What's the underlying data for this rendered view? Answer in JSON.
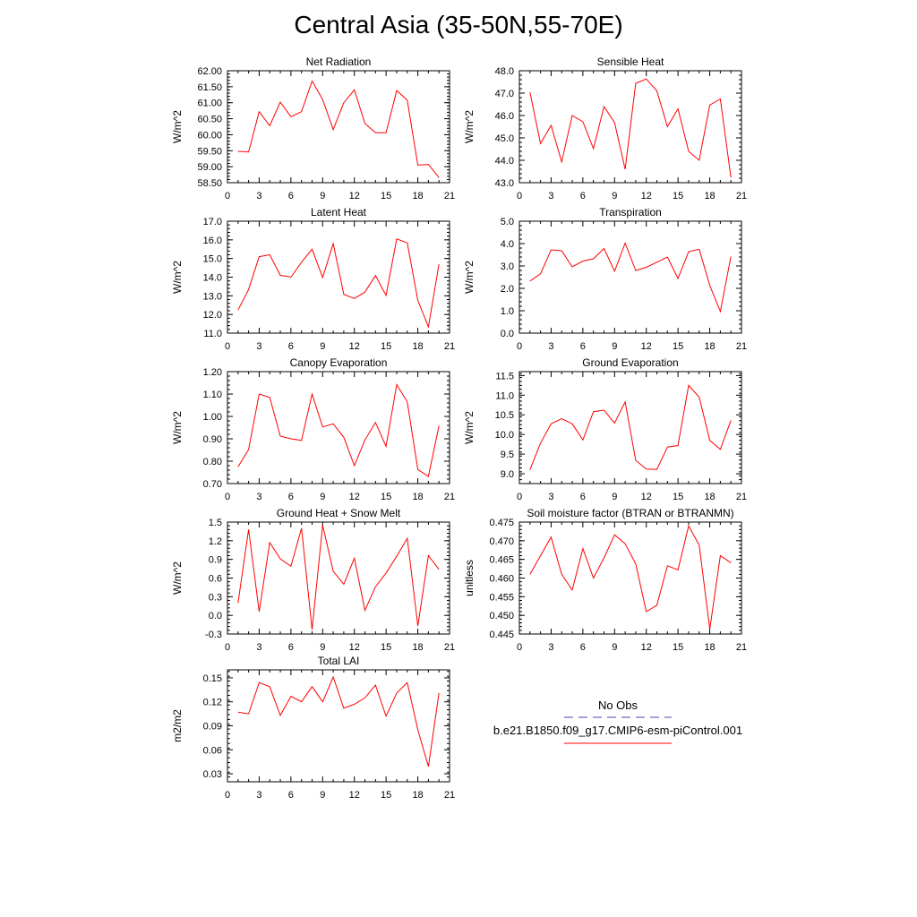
{
  "page": {
    "title": "Central Asia (35-50N,55-70E)"
  },
  "legend": {
    "obs_label": "No Obs",
    "model_label": "b.e21.B1850.f09_g17.CMIP6-esm-piControl.001",
    "obs_color": "#4444aa",
    "model_color": "#ff0000"
  },
  "chart_data": [
    {
      "type": "line",
      "title": "Net Radiation",
      "ylabel": "W/m^2",
      "xlim": [
        0,
        21
      ],
      "ylim": [
        58.5,
        62.0
      ],
      "xticks": [
        "0",
        "3",
        "6",
        "9",
        "12",
        "15",
        "18",
        "21"
      ],
      "yticks": [
        "58.50",
        "59.00",
        "59.50",
        "60.00",
        "60.50",
        "61.00",
        "61.50",
        "62.00"
      ],
      "x": [
        1,
        2,
        3,
        4,
        5,
        6,
        7,
        8,
        9,
        10,
        11,
        12,
        13,
        14,
        15,
        16,
        17,
        18,
        19,
        20
      ],
      "series": [
        {
          "values": [
            59.48,
            59.46,
            60.72,
            60.28,
            61.02,
            60.56,
            60.72,
            61.68,
            61.1,
            60.16,
            61.0,
            61.4,
            60.35,
            60.06,
            60.06,
            61.38,
            61.08,
            59.05,
            59.07,
            58.66
          ],
          "color": "#ff0000"
        }
      ]
    },
    {
      "type": "line",
      "title": "Sensible Heat",
      "ylabel": "W/m^2",
      "xlim": [
        0,
        21
      ],
      "ylim": [
        43.0,
        48.0
      ],
      "xticks": [
        "0",
        "3",
        "6",
        "9",
        "12",
        "15",
        "18",
        "21"
      ],
      "yticks": [
        "43.0",
        "44.0",
        "45.0",
        "46.0",
        "47.0",
        "48.0"
      ],
      "x": [
        1,
        2,
        3,
        4,
        5,
        6,
        7,
        8,
        9,
        10,
        11,
        12,
        13,
        14,
        15,
        16,
        17,
        18,
        19,
        20
      ],
      "series": [
        {
          "values": [
            47.04,
            44.75,
            45.56,
            43.93,
            46.0,
            45.72,
            44.52,
            46.4,
            45.68,
            43.6,
            47.44,
            47.63,
            47.1,
            45.5,
            46.3,
            44.4,
            44.0,
            46.47,
            46.74,
            43.23
          ],
          "color": "#ff0000"
        }
      ]
    },
    {
      "type": "line",
      "title": "Latent Heat",
      "ylabel": "W/m^2",
      "xlim": [
        0,
        21
      ],
      "ylim": [
        11.0,
        17.0
      ],
      "xticks": [
        "0",
        "3",
        "6",
        "9",
        "12",
        "15",
        "18",
        "21"
      ],
      "yticks": [
        "11.0",
        "12.0",
        "13.0",
        "14.0",
        "15.0",
        "16.0",
        "17.0"
      ],
      "x": [
        1,
        2,
        3,
        4,
        5,
        6,
        7,
        8,
        9,
        10,
        11,
        12,
        13,
        14,
        15,
        16,
        17,
        18,
        19,
        20
      ],
      "series": [
        {
          "values": [
            12.24,
            13.34,
            15.1,
            15.2,
            14.1,
            14.0,
            14.8,
            15.5,
            13.98,
            15.8,
            13.08,
            12.86,
            13.2,
            14.08,
            13.02,
            16.05,
            15.84,
            12.75,
            11.34,
            14.7
          ],
          "color": "#ff0000"
        }
      ]
    },
    {
      "type": "line",
      "title": "Transpiration",
      "ylabel": "W/m^2",
      "xlim": [
        0,
        21
      ],
      "ylim": [
        0.0,
        5.0
      ],
      "xticks": [
        "0",
        "3",
        "6",
        "9",
        "12",
        "15",
        "18",
        "21"
      ],
      "yticks": [
        "0.0",
        "1.0",
        "2.0",
        "3.0",
        "4.0",
        "5.0"
      ],
      "x": [
        1,
        2,
        3,
        4,
        5,
        6,
        7,
        8,
        9,
        10,
        11,
        12,
        13,
        14,
        15,
        16,
        17,
        18,
        19,
        20
      ],
      "series": [
        {
          "values": [
            2.33,
            2.65,
            3.72,
            3.68,
            2.96,
            3.22,
            3.32,
            3.78,
            2.77,
            4.02,
            2.8,
            2.94,
            3.17,
            3.4,
            2.44,
            3.64,
            3.75,
            2.13,
            0.97,
            3.42
          ],
          "color": "#ff0000"
        }
      ]
    },
    {
      "type": "line",
      "title": "Canopy Evaporation",
      "ylabel": "W/m^2",
      "xlim": [
        0,
        21
      ],
      "ylim": [
        0.7,
        1.2
      ],
      "xticks": [
        "0",
        "3",
        "6",
        "9",
        "12",
        "15",
        "18",
        "21"
      ],
      "yticks": [
        "0.70",
        "0.80",
        "0.90",
        "1.00",
        "1.10",
        "1.20"
      ],
      "x": [
        1,
        2,
        3,
        4,
        5,
        6,
        7,
        8,
        9,
        10,
        11,
        12,
        13,
        14,
        15,
        16,
        17,
        18,
        19,
        20
      ],
      "series": [
        {
          "values": [
            0.775,
            0.852,
            1.1,
            1.085,
            0.912,
            0.9,
            0.893,
            1.1,
            0.953,
            0.967,
            0.907,
            0.78,
            0.895,
            0.973,
            0.866,
            1.142,
            1.065,
            0.763,
            0.732,
            0.958
          ],
          "color": "#ff0000"
        }
      ]
    },
    {
      "type": "line",
      "title": "Ground Evaporation",
      "ylabel": "W/m^2",
      "xlim": [
        0,
        21
      ],
      "ylim": [
        8.75,
        11.6
      ],
      "xticks": [
        "0",
        "3",
        "6",
        "9",
        "12",
        "15",
        "18",
        "21"
      ],
      "yticks": [
        "9.0",
        "9.5",
        "10.0",
        "10.5",
        "11.0",
        "11.5"
      ],
      "x": [
        1,
        2,
        3,
        4,
        5,
        6,
        7,
        8,
        9,
        10,
        11,
        12,
        13,
        14,
        15,
        16,
        17,
        18,
        19,
        20
      ],
      "series": [
        {
          "values": [
            9.1,
            9.78,
            10.27,
            10.4,
            10.27,
            9.86,
            10.58,
            10.62,
            10.29,
            10.83,
            9.34,
            9.12,
            9.11,
            9.68,
            9.72,
            11.25,
            10.95,
            9.85,
            9.62,
            10.36
          ],
          "color": "#ff0000"
        }
      ]
    },
    {
      "type": "line",
      "title": "Ground Heat + Snow Melt",
      "ylabel": "W/m^2",
      "xlim": [
        0,
        21
      ],
      "ylim": [
        -0.3,
        1.5
      ],
      "xticks": [
        "0",
        "3",
        "6",
        "9",
        "12",
        "15",
        "18",
        "21"
      ],
      "yticks": [
        "-0.3",
        "0.0",
        "0.3",
        "0.6",
        "0.9",
        "1.2",
        "1.5"
      ],
      "x": [
        1,
        2,
        3,
        4,
        5,
        6,
        7,
        8,
        9,
        10,
        11,
        12,
        13,
        14,
        15,
        16,
        17,
        18,
        19,
        20
      ],
      "series": [
        {
          "values": [
            0.2,
            1.38,
            0.06,
            1.17,
            0.91,
            0.79,
            1.4,
            -0.23,
            1.45,
            0.71,
            0.5,
            0.92,
            0.08,
            0.46,
            0.68,
            0.95,
            1.24,
            -0.17,
            0.96,
            0.74
          ],
          "color": "#ff0000"
        }
      ]
    },
    {
      "type": "line",
      "title": "Soil moisture factor (BTRAN or BTRANMN)",
      "ylabel": "unitless",
      "xlim": [
        0,
        21
      ],
      "ylim": [
        0.445,
        0.475
      ],
      "xticks": [
        "0",
        "3",
        "6",
        "9",
        "12",
        "15",
        "18",
        "21"
      ],
      "yticks": [
        "0.445",
        "0.450",
        "0.455",
        "0.460",
        "0.465",
        "0.470",
        "0.475"
      ],
      "x": [
        1,
        2,
        3,
        4,
        5,
        6,
        7,
        8,
        9,
        10,
        11,
        12,
        13,
        14,
        15,
        16,
        17,
        18,
        19,
        20
      ],
      "series": [
        {
          "values": [
            0.461,
            0.466,
            0.471,
            0.461,
            0.4568,
            0.4679,
            0.46,
            0.4654,
            0.4716,
            0.4692,
            0.4638,
            0.451,
            0.4527,
            0.4633,
            0.4622,
            0.474,
            0.4688,
            0.4463,
            0.466,
            0.4641
          ],
          "color": "#ff0000"
        }
      ]
    },
    {
      "type": "line",
      "title": "Total LAI",
      "ylabel": "m2/m2",
      "xlim": [
        0,
        21
      ],
      "ylim": [
        0.02,
        0.16
      ],
      "xticks": [
        "0",
        "3",
        "6",
        "9",
        "12",
        "15",
        "18",
        "21"
      ],
      "yticks": [
        "0.03",
        "0.06",
        "0.09",
        "0.12",
        "0.15"
      ],
      "x": [
        1,
        2,
        3,
        4,
        5,
        6,
        7,
        8,
        9,
        10,
        11,
        12,
        13,
        14,
        15,
        16,
        17,
        18,
        19,
        20
      ],
      "series": [
        {
          "values": [
            0.107,
            0.105,
            0.144,
            0.139,
            0.103,
            0.127,
            0.12,
            0.139,
            0.12,
            0.151,
            0.112,
            0.117,
            0.125,
            0.141,
            0.102,
            0.131,
            0.144,
            0.085,
            0.039,
            0.131
          ],
          "color": "#ff0000"
        }
      ]
    }
  ]
}
